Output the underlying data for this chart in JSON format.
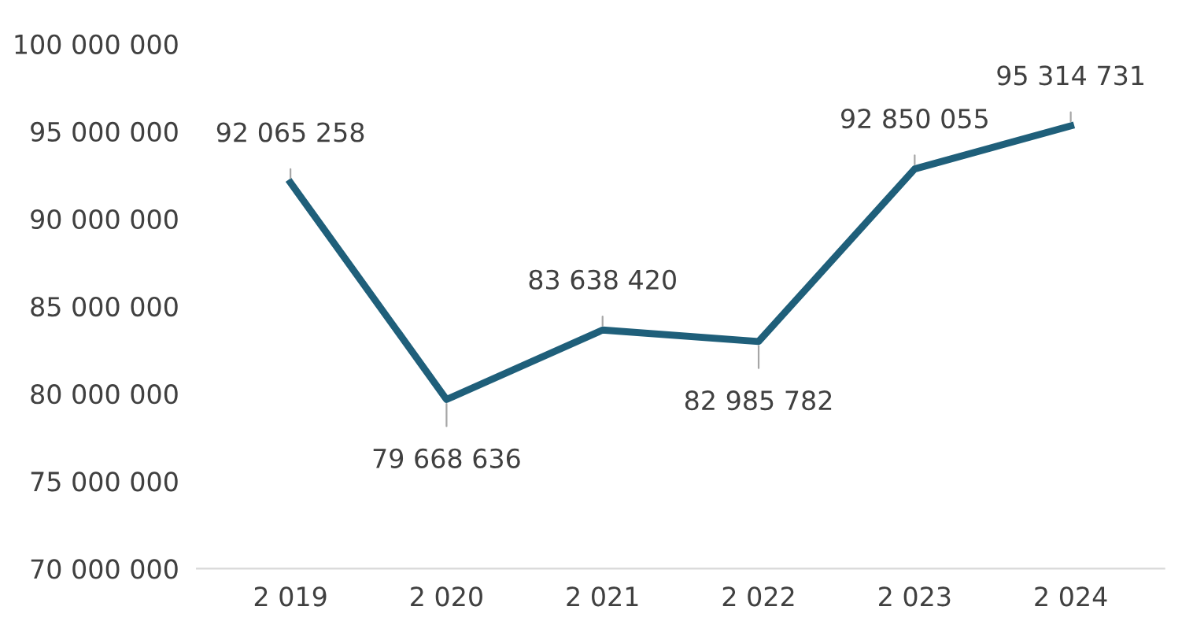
{
  "chart_data": {
    "type": "line",
    "categories": [
      "2 019",
      "2 020",
      "2 021",
      "2 022",
      "2 023",
      "2 024"
    ],
    "series": [
      {
        "color": "#1f5f7a",
        "values": [
          92065258,
          79668636,
          83638420,
          82985782,
          92850055,
          95314731
        ]
      }
    ],
    "value_labels": [
      "92 065 258",
      "79 668 636",
      "83 638 420",
      "82 985 782",
      "92 850 055",
      "95 314 731"
    ],
    "ylim": [
      70000000,
      100000000
    ],
    "yticks": [
      {
        "value": 70000000,
        "label": "70 000 000"
      },
      {
        "value": 75000000,
        "label": "75 000 000"
      },
      {
        "value": 80000000,
        "label": "80 000 000"
      },
      {
        "value": 85000000,
        "label": "85 000 000"
      },
      {
        "value": 90000000,
        "label": "90 000 000"
      },
      {
        "value": 95000000,
        "label": "95 000 000"
      },
      {
        "value": 100000000,
        "label": "100 000 000"
      }
    ],
    "grid": false,
    "legend": false,
    "marker": "none",
    "line_style": "solid"
  }
}
